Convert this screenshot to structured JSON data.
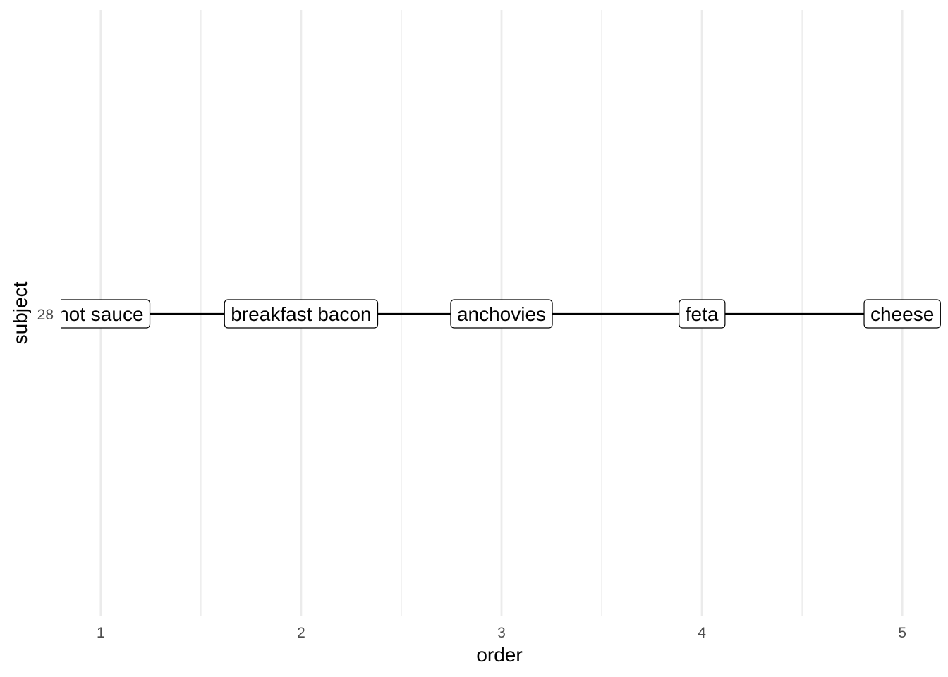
{
  "chart_data": {
    "type": "line",
    "xlabel": "order",
    "ylabel": "subject",
    "xlim": [
      0.8,
      5.2
    ],
    "x_ticks": [
      1,
      2,
      3,
      4,
      5
    ],
    "grid": {
      "major": true,
      "minor": true,
      "horizontal": false
    },
    "legend": "none",
    "y_categories": [
      "28"
    ],
    "series": [
      {
        "subject": "28",
        "x": [
          1,
          2,
          3,
          4,
          5
        ],
        "labels": [
          "hot sauce",
          "breakfast bacon",
          "anchovies",
          "feta",
          "cheese"
        ]
      }
    ],
    "colors": {
      "grid": "#ebebeb",
      "line": "#000000",
      "label_fill": "#ffffff",
      "label_border": "#000000",
      "tick_text": "#4d4d4d"
    }
  }
}
